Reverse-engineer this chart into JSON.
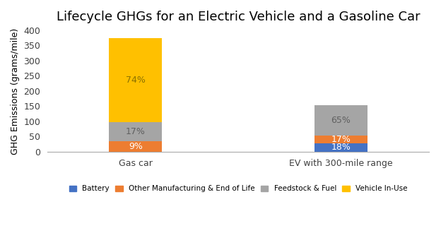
{
  "title": "Lifecycle GHGs for an Electric Vehicle and a Gasoline Car",
  "ylabel": "GHG Emissions (grams/mile)",
  "categories": [
    "Gas car",
    "EV with 300-mile range"
  ],
  "x_positions": [
    0.3,
    1.0
  ],
  "xlim": [
    0,
    1.3
  ],
  "segments": {
    "Battery": {
      "values": [
        0,
        28
      ],
      "color": "#4472c4",
      "label": "Battery"
    },
    "Other Manufacturing & End of Life": {
      "values": [
        34,
        26
      ],
      "color": "#ed7d31",
      "label": "Other Manufacturing & End of Life"
    },
    "Feedstock & Fuel": {
      "values": [
        64,
        100
      ],
      "color": "#a5a5a5",
      "label": "Feedstock & Fuel"
    },
    "Vehicle In-Use": {
      "values": [
        277,
        0
      ],
      "color": "#ffc000",
      "label": "Vehicle In-Use"
    }
  },
  "labels": {
    "Gas car": [
      "",
      "9%",
      "17%",
      "74%"
    ],
    "EV with 300-mile range": [
      "18%",
      "17%",
      "65%",
      ""
    ]
  },
  "label_text_colors": {
    "Battery": "#ffffff",
    "Other Manufacturing & End of Life": "#ffffff",
    "Feedstock & Fuel": "#606060",
    "Vehicle In-Use": "#8b7000"
  },
  "ylim": [
    0,
    400
  ],
  "yticks": [
    0,
    50,
    100,
    150,
    200,
    250,
    300,
    350,
    400
  ],
  "background_color": "#ffffff",
  "title_fontsize": 13,
  "label_fontsize": 9,
  "tick_fontsize": 9,
  "bar_width": 0.18
}
